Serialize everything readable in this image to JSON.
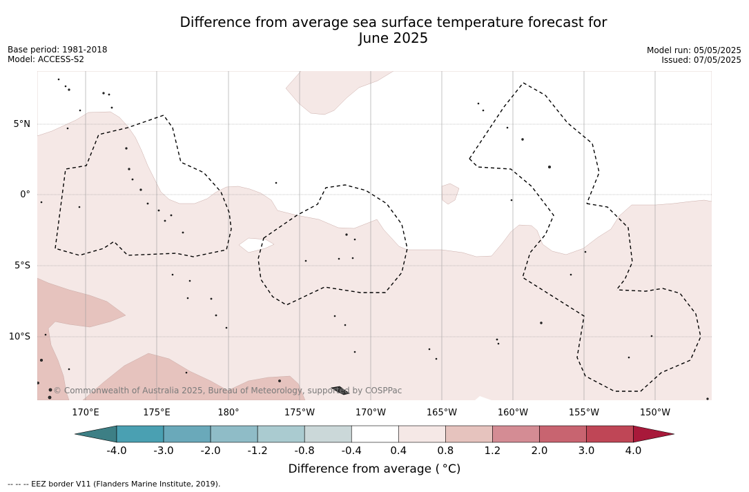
{
  "header": {
    "title_line1": "Difference from average sea surface temperature forecast for",
    "title_line2": "June 2025",
    "base_period": "Base period: 1981-2018",
    "model": "Model: ACCESS-S2",
    "model_run": "Model run: 05/05/2025",
    "issued": "Issued: 07/05/2025"
  },
  "map": {
    "lat_labels": [
      "5°N",
      "0°",
      "5°S",
      "10°S"
    ],
    "lon_labels": [
      "170°E",
      "175°E",
      "180°",
      "175°W",
      "170°W",
      "165°W",
      "160°W",
      "155°W",
      "150°W"
    ],
    "copyright": "© Commonwealth of Australia 2025, Bureau of Meteorology, supported by COSPPac"
  },
  "colorbar": {
    "tick_labels": [
      "-4.0",
      "-3.0",
      "-2.0",
      "-1.2",
      "-0.8",
      "-0.4",
      "0.4",
      "0.8",
      "1.2",
      "2.0",
      "3.0",
      "4.0"
    ],
    "colors": [
      "#3d7f85",
      "#4aa0b2",
      "#6aa9ba",
      "#8fbcc7",
      "#aacbd0",
      "#cbd8d9",
      "#ffffff",
      "#f5e8e6",
      "#e6c3be",
      "#d48c94",
      "#c86470",
      "#bf4656",
      "#a8193a"
    ],
    "title": "Difference from average ( °C)"
  },
  "legend": {
    "text": "--  --  -- EEZ border V11 (Flanders Marine Institute, 2019)."
  }
}
